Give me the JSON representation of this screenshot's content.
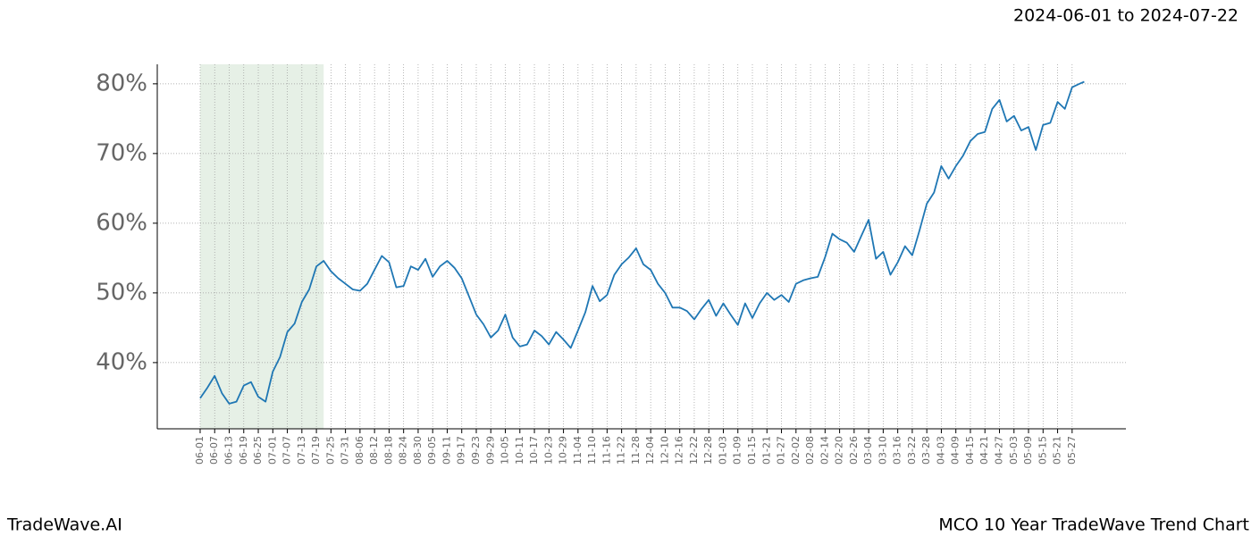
{
  "chart_data": {
    "type": "line",
    "title": "2024-06-01 to 2024-07-22",
    "footer_left": "TradeWave.AI",
    "footer_right": "MCO 10 Year TradeWave Trend Chart",
    "shaded_span": {
      "from": 0,
      "to": 51,
      "color": "#e6f0e6"
    },
    "grid": true,
    "xlim": [
      -17.7,
      382.2
    ],
    "ylim": [
      30.5,
      82.8
    ],
    "yticks": [
      {
        "value": 40,
        "label": "40%"
      },
      {
        "value": 50,
        "label": "50%"
      },
      {
        "value": 60,
        "label": "60%"
      },
      {
        "value": 70,
        "label": "70%"
      },
      {
        "value": 80,
        "label": "80%"
      }
    ],
    "xticks": [
      {
        "value": 0,
        "label": "06-01"
      },
      {
        "value": 6,
        "label": "06-07"
      },
      {
        "value": 12,
        "label": "06-13"
      },
      {
        "value": 18,
        "label": "06-19"
      },
      {
        "value": 24,
        "label": "06-25"
      },
      {
        "value": 30,
        "label": "07-01"
      },
      {
        "value": 36,
        "label": "07-07"
      },
      {
        "value": 42,
        "label": "07-13"
      },
      {
        "value": 48,
        "label": "07-19"
      },
      {
        "value": 54,
        "label": "07-25"
      },
      {
        "value": 60,
        "label": "07-31"
      },
      {
        "value": 66,
        "label": "08-06"
      },
      {
        "value": 72,
        "label": "08-12"
      },
      {
        "value": 78,
        "label": "08-18"
      },
      {
        "value": 84,
        "label": "08-24"
      },
      {
        "value": 90,
        "label": "08-30"
      },
      {
        "value": 96,
        "label": "09-05"
      },
      {
        "value": 102,
        "label": "09-11"
      },
      {
        "value": 108,
        "label": "09-17"
      },
      {
        "value": 114,
        "label": "09-23"
      },
      {
        "value": 120,
        "label": "09-29"
      },
      {
        "value": 126,
        "label": "10-05"
      },
      {
        "value": 132,
        "label": "10-11"
      },
      {
        "value": 138,
        "label": "10-17"
      },
      {
        "value": 144,
        "label": "10-23"
      },
      {
        "value": 150,
        "label": "10-29"
      },
      {
        "value": 156,
        "label": "11-04"
      },
      {
        "value": 162,
        "label": "11-10"
      },
      {
        "value": 168,
        "label": "11-16"
      },
      {
        "value": 174,
        "label": "11-22"
      },
      {
        "value": 180,
        "label": "11-28"
      },
      {
        "value": 186,
        "label": "12-04"
      },
      {
        "value": 192,
        "label": "12-10"
      },
      {
        "value": 198,
        "label": "12-16"
      },
      {
        "value": 204,
        "label": "12-22"
      },
      {
        "value": 210,
        "label": "12-28"
      },
      {
        "value": 216,
        "label": "01-03"
      },
      {
        "value": 222,
        "label": "01-09"
      },
      {
        "value": 228,
        "label": "01-15"
      },
      {
        "value": 234,
        "label": "01-21"
      },
      {
        "value": 240,
        "label": "01-27"
      },
      {
        "value": 246,
        "label": "02-02"
      },
      {
        "value": 252,
        "label": "02-08"
      },
      {
        "value": 258,
        "label": "02-14"
      },
      {
        "value": 264,
        "label": "02-20"
      },
      {
        "value": 270,
        "label": "02-26"
      },
      {
        "value": 276,
        "label": "03-04"
      },
      {
        "value": 282,
        "label": "03-10"
      },
      {
        "value": 288,
        "label": "03-16"
      },
      {
        "value": 294,
        "label": "03-22"
      },
      {
        "value": 300,
        "label": "03-28"
      },
      {
        "value": 306,
        "label": "04-03"
      },
      {
        "value": 312,
        "label": "04-09"
      },
      {
        "value": 318,
        "label": "04-15"
      },
      {
        "value": 324,
        "label": "04-21"
      },
      {
        "value": 330,
        "label": "04-27"
      },
      {
        "value": 336,
        "label": "05-03"
      },
      {
        "value": 342,
        "label": "05-09"
      },
      {
        "value": 348,
        "label": "05-15"
      },
      {
        "value": 354,
        "label": "05-21"
      },
      {
        "value": 360,
        "label": "05-27"
      }
    ],
    "x": [
      0,
      3,
      6,
      9,
      12,
      15,
      18,
      21,
      24,
      27,
      30,
      33,
      36,
      39,
      42,
      45,
      48,
      51,
      54,
      57,
      60,
      63,
      66,
      69,
      72,
      75,
      78,
      81,
      84,
      87,
      90,
      93,
      96,
      99,
      102,
      105,
      108,
      111,
      114,
      117,
      120,
      123,
      126,
      129,
      132,
      135,
      138,
      141,
      144,
      147,
      150,
      153,
      156,
      159,
      162,
      165,
      168,
      171,
      174,
      177,
      180,
      183,
      186,
      189,
      192,
      195,
      198,
      201,
      204,
      207,
      210,
      213,
      216,
      219,
      222,
      225,
      228,
      231,
      234,
      237,
      240,
      243,
      246,
      249,
      252,
      255,
      258,
      261,
      264,
      267,
      270,
      273,
      276,
      279,
      282,
      285,
      288,
      291,
      294,
      297,
      300,
      303,
      306,
      309,
      312,
      315,
      318,
      321,
      324,
      327,
      330,
      333,
      336,
      339,
      342,
      345,
      348,
      351,
      354,
      357,
      360,
      363,
      365
    ],
    "series": [
      {
        "color": "#1f77b4",
        "values": [
          34.9,
          36.4,
          38.1,
          35.6,
          34.1,
          34.4,
          36.7,
          37.2,
          35.1,
          34.4,
          38.7,
          40.8,
          44.4,
          45.6,
          48.7,
          50.5,
          53.8,
          54.6,
          53.1,
          52.1,
          51.3,
          50.5,
          50.3,
          51.3,
          53.3,
          55.3,
          54.4,
          50.8,
          51.0,
          53.8,
          53.3,
          54.9,
          52.3,
          53.8,
          54.6,
          53.6,
          52.1,
          49.5,
          46.9,
          45.5,
          43.6,
          44.6,
          46.9,
          43.6,
          42.3,
          42.6,
          44.6,
          43.8,
          42.6,
          44.4,
          43.3,
          42.1,
          44.6,
          47.2,
          51.0,
          48.8,
          49.7,
          52.6,
          54.1,
          55.1,
          56.4,
          54.1,
          53.3,
          51.3,
          50.0,
          47.9,
          47.9,
          47.4,
          46.2,
          47.7,
          49.0,
          46.7,
          48.5,
          46.9,
          45.4,
          48.5,
          46.4,
          48.5,
          50.0,
          49.0,
          49.7,
          48.7,
          51.3,
          51.8,
          52.1,
          52.3,
          55.1,
          58.5,
          57.7,
          57.2,
          55.9,
          58.2,
          60.5,
          54.9,
          55.9,
          52.6,
          54.4,
          56.7,
          55.4,
          59.0,
          62.8,
          64.4,
          68.2,
          66.4,
          68.2,
          69.7,
          71.8,
          72.8,
          73.1,
          76.4,
          77.7,
          74.6,
          75.4,
          73.3,
          73.8,
          70.5,
          74.1,
          74.4,
          77.4,
          76.4,
          79.5,
          80.0,
          80.3
        ]
      }
    ]
  }
}
